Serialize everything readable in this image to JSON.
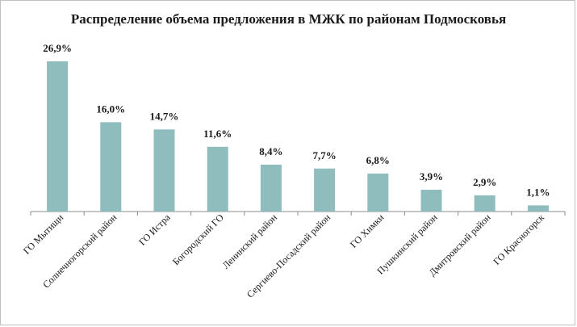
{
  "chart_data": {
    "type": "bar",
    "title": "Распределение объема предложения в МЖК по районам Подмосковья",
    "categories": [
      "ГО Мытищи",
      "Солнечногорский район",
      "ГО Истра",
      "Богородский ГО",
      "Ленинский район",
      "Сергиево-Посадский район",
      "ГО Химки",
      "Пушкинский район",
      "Дмитровский район",
      "ГО Красногорск"
    ],
    "values": [
      26.9,
      16.0,
      14.7,
      11.6,
      8.4,
      7.7,
      6.8,
      3.9,
      2.9,
      1.1
    ],
    "data_labels": [
      "26,9%",
      "16,0%",
      "14,7%",
      "11,6%",
      "8,4%",
      "7,7%",
      "6,8%",
      "3,9%",
      "2,9%",
      "1,1%"
    ],
    "xlabel": "",
    "ylabel": "",
    "ylim": [
      0,
      27
    ],
    "grid": false,
    "legend": "none",
    "bar_color": "#8fbcbc"
  }
}
